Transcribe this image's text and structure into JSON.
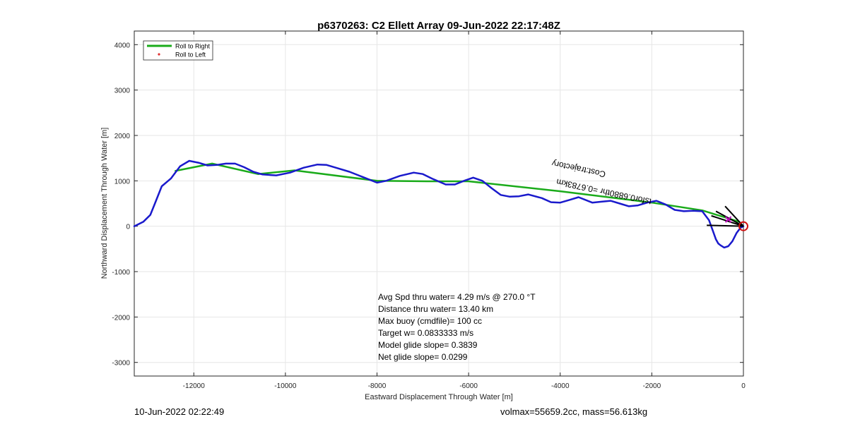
{
  "chart_data": {
    "type": "line",
    "title": "p6370263: C2 Ellett Array 09-Jun-2022 22:17:48Z",
    "xlabel": "Eastward Displacement Through Water [m]",
    "ylabel": "Northward Displacement Through Water [m]",
    "xlim": [
      -13300,
      0
    ],
    "ylim": [
      -3300,
      4300
    ],
    "xticks": [
      -12000,
      -10000,
      -8000,
      -6000,
      -4000,
      -2000,
      0
    ],
    "yticks": [
      -3000,
      -2000,
      -1000,
      0,
      1000,
      2000,
      3000,
      4000
    ],
    "xtick_labels": [
      "-12000",
      "-10000",
      "-8000",
      "-6000",
      "-4000",
      "-2000",
      "0"
    ],
    "ytick_labels": [
      "-3000",
      "-2000",
      "-1000",
      "0",
      "1000",
      "2000",
      "3000",
      "4000"
    ],
    "grid": true,
    "legend_position": "top-left",
    "legend": [
      {
        "name": "Roll to Right",
        "color": "#1aab1a",
        "style": "line"
      },
      {
        "name": "Roll to Left",
        "color": "#e03030",
        "style": "dot"
      }
    ],
    "series": [
      {
        "name": "Roll to Right",
        "color": "#1aab1a",
        "x": [
          -12400,
          -11600,
          -10600,
          -9800,
          -8000,
          -6900,
          -6000,
          -4000,
          -2000,
          -900,
          -100
        ],
        "y": [
          1220,
          1380,
          1150,
          1230,
          1000,
          990,
          990,
          770,
          520,
          350,
          100
        ]
      },
      {
        "name": "track",
        "color": "#1a1acc",
        "x": [
          -13300,
          -13100,
          -12950,
          -12850,
          -12700,
          -12500,
          -12300,
          -12100,
          -11900,
          -11700,
          -11500,
          -11300,
          -11100,
          -10900,
          -10700,
          -10500,
          -10200,
          -9900,
          -9600,
          -9300,
          -9100,
          -8900,
          -8600,
          -8300,
          -8000,
          -7800,
          -7500,
          -7200,
          -7000,
          -6800,
          -6500,
          -6300,
          -6100,
          -5900,
          -5700,
          -5500,
          -5300,
          -5100,
          -4900,
          -4700,
          -4400,
          -4200,
          -4000,
          -3800,
          -3600,
          -3300,
          -3100,
          -2900,
          -2700,
          -2500,
          -2300,
          -2100,
          -1900,
          -1700,
          -1500,
          -1300,
          -1100,
          -900,
          -750,
          -650,
          -600,
          -550,
          -500,
          -420,
          -330,
          -240,
          -150,
          -60,
          0
        ],
        "y": [
          0,
          100,
          250,
          500,
          880,
          1050,
          1320,
          1440,
          1400,
          1340,
          1350,
          1380,
          1380,
          1300,
          1200,
          1140,
          1120,
          1180,
          1290,
          1360,
          1350,
          1290,
          1200,
          1080,
          960,
          1000,
          1110,
          1180,
          1150,
          1050,
          920,
          920,
          1000,
          1070,
          1000,
          840,
          690,
          650,
          660,
          700,
          620,
          530,
          520,
          580,
          640,
          520,
          540,
          560,
          500,
          440,
          460,
          520,
          560,
          480,
          360,
          330,
          340,
          330,
          130,
          -150,
          -290,
          -380,
          -420,
          -470,
          -440,
          -330,
          -150,
          -30,
          0
        ]
      }
    ],
    "annotations": [
      {
        "text": "Cost:trajectory",
        "x": -3000,
        "y": 1200,
        "rotation": 192
      },
      {
        "text": "tsfor0.6880thr =0.6783km",
        "x": -2000,
        "y": 600,
        "rotation": 192
      }
    ],
    "stats": [
      "Avg Spd thru water=  4.29 m/s @ 270.0 °T",
      "Distance thru water= 13.40 km",
      "Max buoy (cmdfile)= 100 cc",
      "Target w= 0.0833333 m/s",
      "Model glide slope= 0.3839",
      "Net glide slope= 0.0299"
    ]
  },
  "footer": {
    "date": "10-Jun-2022 02:22:49",
    "info": "volmax=55659.2cc, mass=56.613kg"
  }
}
